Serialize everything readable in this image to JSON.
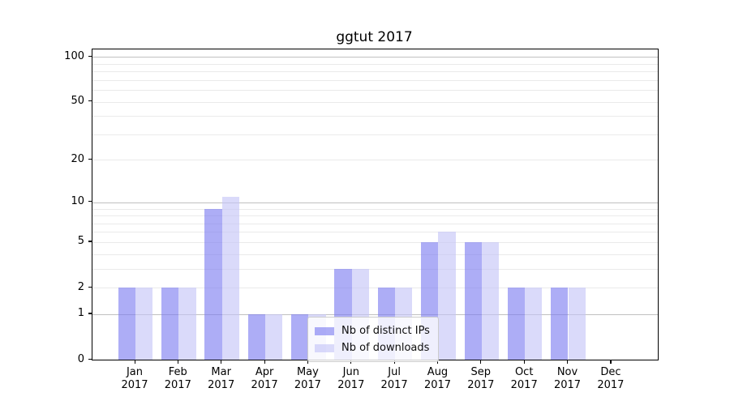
{
  "chart_data": {
    "type": "bar",
    "title": "ggtut 2017",
    "xlabel": "",
    "ylabel": "",
    "scale": "log1p",
    "months": [
      "Jan",
      "Feb",
      "Mar",
      "Apr",
      "May",
      "Jun",
      "Jul",
      "Aug",
      "Sep",
      "Oct",
      "Nov",
      "Dec"
    ],
    "year": "2017",
    "series": [
      {
        "key": "ips",
        "name": "Nb of distinct IPs",
        "color": "#7b7bf0",
        "opacity": 0.62,
        "values": [
          2,
          2,
          9,
          1,
          1,
          3,
          2,
          5,
          5,
          2,
          2,
          0
        ]
      },
      {
        "key": "downloads",
        "name": "Nb of downloads",
        "color": "#c4c4f7",
        "opacity": 0.62,
        "values": [
          2,
          2,
          11,
          1,
          1,
          3,
          2,
          6,
          5,
          2,
          2,
          0
        ]
      }
    ],
    "y_ticks": [
      0,
      1,
      2,
      5,
      10,
      20,
      50,
      100
    ],
    "y_major_gridlines": [
      1,
      10,
      100
    ],
    "y_minor_gridlines": [
      2,
      3,
      4,
      5,
      6,
      7,
      8,
      9,
      20,
      30,
      40,
      50,
      60,
      70,
      80,
      90
    ],
    "ylim": [
      0,
      100
    ],
    "legend_position": "lower center",
    "colors": {
      "grid_major": "#c0c0c0",
      "grid_minor": "#eaeaea",
      "axis": "#000000",
      "background": "#ffffff"
    }
  }
}
